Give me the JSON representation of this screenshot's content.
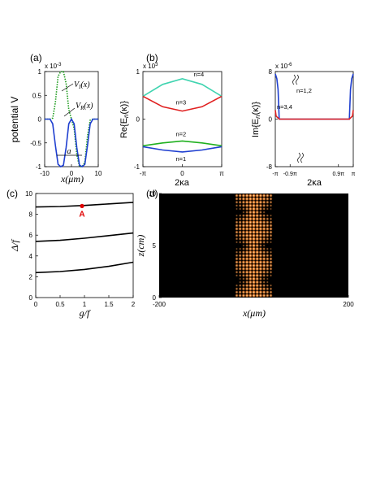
{
  "chart_data": [
    {
      "panel": "(a)",
      "type": "line",
      "ylabel": "potential V",
      "xlabel": "x(μm)",
      "multiplier": "x 10",
      "multiplier_exp": "-3",
      "xlim": [
        -10,
        10
      ],
      "ylim": [
        -1,
        1
      ],
      "xticks": [
        "-10",
        "0",
        "10"
      ],
      "yticks": [
        "-1",
        "-0.5",
        "0",
        "0.5",
        "1"
      ],
      "annotations": {
        "vi_label": "V",
        "vi_sub": "I",
        "vi_arg": "(x)",
        "vr_label": "V",
        "vr_sub": "R",
        "vr_arg": "(x)",
        "a_label": "a"
      },
      "series": [
        {
          "name": "V_I(x)",
          "color": "#1a9a1a",
          "style": "dotted",
          "x": [
            -10,
            -9,
            -8,
            -7,
            -6,
            -5,
            -4,
            -3,
            -2,
            -1,
            0,
            1,
            2,
            3,
            4,
            5,
            6,
            7,
            8,
            9,
            10
          ],
          "y": [
            0,
            0,
            0,
            0.02,
            0.35,
            0.9,
            1,
            1,
            0.75,
            0.2,
            0,
            -0.2,
            -0.75,
            -1,
            -1,
            -0.9,
            -0.35,
            -0.02,
            0,
            0,
            0
          ]
        },
        {
          "name": "V_R(x)",
          "color": "#1f3fd0",
          "style": "solid",
          "x": [
            -10,
            -9,
            -8,
            -7,
            -6,
            -5,
            -4,
            -3,
            -2,
            -1,
            0,
            1,
            2,
            3,
            4,
            5,
            6,
            7,
            8,
            9,
            10
          ],
          "y": [
            0,
            0,
            0,
            -0.1,
            -0.55,
            -0.95,
            -1,
            -0.97,
            -0.6,
            -0.1,
            0,
            -0.1,
            -0.6,
            -0.97,
            -1,
            -0.95,
            -0.55,
            -0.1,
            0,
            0,
            0
          ]
        }
      ]
    },
    {
      "panel": "(b)",
      "type": "line",
      "ylabel_pre": "Re{E",
      "ylabel_sub": "n",
      "ylabel_post": "(κ)}",
      "xlabel": "2κa",
      "multiplier": "x 10",
      "multiplier_exp": "3",
      "ylim": [
        -1,
        1
      ],
      "xticks": [
        "-π",
        "0",
        "π"
      ],
      "yticks": [
        "-1",
        "0",
        "1"
      ],
      "series": [
        {
          "name": "n=4",
          "color": "#40d4b0",
          "x": [
            -1,
            -0.5,
            0,
            0.5,
            1
          ],
          "y": [
            0.48,
            0.73,
            0.85,
            0.73,
            0.48
          ]
        },
        {
          "name": "n=3",
          "color": "#e02020",
          "x": [
            -1,
            -0.5,
            0,
            0.5,
            1
          ],
          "y": [
            0.48,
            0.26,
            0.17,
            0.26,
            0.48
          ]
        },
        {
          "name": "n=2",
          "color": "#20b020",
          "x": [
            -1,
            -0.5,
            0,
            0.5,
            1
          ],
          "y": [
            -0.56,
            -0.5,
            -0.46,
            -0.5,
            -0.56
          ]
        },
        {
          "name": "n=1",
          "color": "#1f3fd0",
          "x": [
            -1,
            -0.5,
            0,
            0.5,
            1
          ],
          "y": [
            -0.58,
            -0.65,
            -0.69,
            -0.65,
            -0.58
          ]
        }
      ]
    },
    {
      "panel": "(b) right",
      "type": "line",
      "ylabel_pre": "Im{E",
      "ylabel_sub": "n",
      "ylabel_post": "(κ)}",
      "xlabel": "2κa",
      "multiplier": "x 10",
      "multiplier_exp": "-6",
      "ylim": [
        -8,
        8
      ],
      "xticks": [
        "-π",
        "-0.9π",
        "0.9π",
        "π"
      ],
      "yticks": [
        "-8",
        "0",
        "8"
      ],
      "series": [
        {
          "name": "n=1,2",
          "color": "#1f3fd0",
          "x": [
            -1,
            -0.96,
            -0.93,
            -0.9,
            0,
            0.9,
            0.93,
            0.96,
            1
          ],
          "y": [
            7.6,
            6.8,
            5,
            0,
            0,
            0,
            5,
            6.8,
            7.6
          ]
        },
        {
          "name": "n=3,4",
          "color": "#e02020",
          "x": [
            -1,
            -0.98,
            -0.9,
            0,
            0.9,
            0.98,
            1
          ],
          "y": [
            1.5,
            0.5,
            0,
            0,
            0,
            0.5,
            1.5
          ]
        }
      ]
    },
    {
      "panel": "(c)",
      "type": "line",
      "ylabel": "Δ/f",
      "xlabel": "g/f",
      "xlim": [
        0,
        2
      ],
      "ylim": [
        0,
        10
      ],
      "xticks": [
        "0",
        "0.5",
        "1",
        "1.5",
        "2"
      ],
      "yticks": [
        "0",
        "2",
        "4",
        "6",
        "8",
        "10"
      ],
      "point": {
        "label": "A",
        "x": 0.95,
        "y": 8.8,
        "color": "#e00000"
      },
      "series": [
        {
          "color": "#000000",
          "x": [
            0,
            0.5,
            1,
            1.5,
            2
          ],
          "y": [
            8.7,
            8.75,
            8.85,
            9.0,
            9.15
          ]
        },
        {
          "color": "#000000",
          "x": [
            0,
            0.5,
            1,
            1.5,
            2
          ],
          "y": [
            5.4,
            5.5,
            5.7,
            5.95,
            6.2
          ]
        },
        {
          "color": "#000000",
          "x": [
            0,
            0.5,
            1,
            1.5,
            2
          ],
          "y": [
            2.4,
            2.5,
            2.7,
            3.0,
            3.4
          ]
        }
      ]
    },
    {
      "panel": "(d)",
      "type": "heatmap",
      "xlabel": "x(μm)",
      "ylabel": "z(cm)",
      "xlim": [
        -200,
        200
      ],
      "ylim": [
        0,
        10
      ],
      "xticks": [
        "-200",
        "200"
      ],
      "yticks": [
        "0",
        "5",
        "10"
      ],
      "background": "#000000",
      "spot_color": "#ff8a30"
    }
  ]
}
